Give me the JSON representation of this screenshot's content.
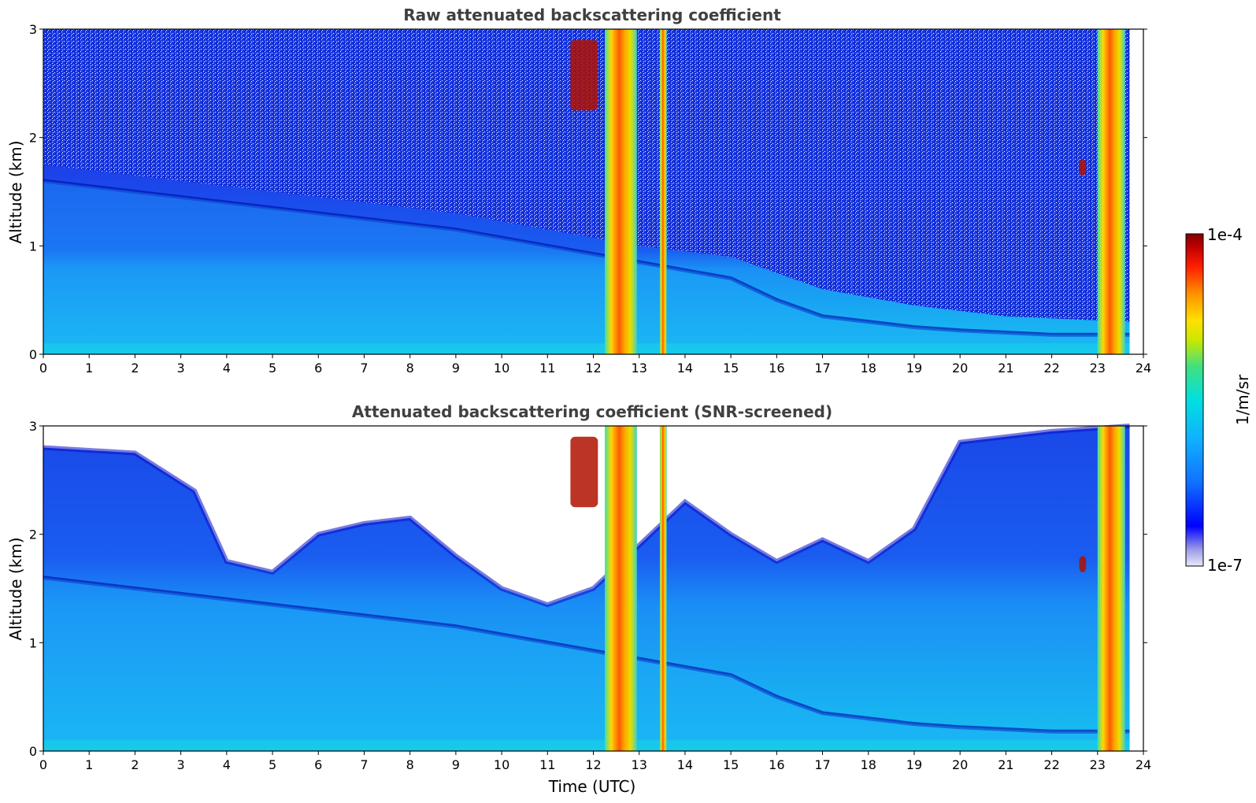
{
  "figure": {
    "xlabel": "Time (UTC)",
    "colorbar": {
      "label": "1/m/sr",
      "max_label": "1e-4",
      "min_label": "1e-7",
      "scale": "log",
      "colormap": [
        "#e8e8f8",
        "#9a9ae8",
        "#0000ff",
        "#1070ff",
        "#10b0ff",
        "#00e0e0",
        "#40e080",
        "#c8e800",
        "#ffe000",
        "#ff9000",
        "#ff2000",
        "#c00000",
        "#800000"
      ]
    }
  },
  "chart_data": [
    {
      "type": "heatmap",
      "title": "Raw attenuated backscattering coefficient",
      "xlabel": "",
      "ylabel": "Altitude (km)",
      "xlim": [
        0,
        24
      ],
      "ylim": [
        0,
        3
      ],
      "x_ticks": [
        "0",
        "1",
        "2",
        "3",
        "4",
        "5",
        "6",
        "7",
        "8",
        "9",
        "10",
        "11",
        "12",
        "13",
        "14",
        "15",
        "16",
        "17",
        "18",
        "19",
        "20",
        "21",
        "22",
        "23",
        "24"
      ],
      "y_ticks": [
        "0",
        "1",
        "2",
        "3"
      ],
      "grid": false,
      "data_end_time": 23.7,
      "boundary_layer_top_km": [
        [
          0,
          1.6
        ],
        [
          3,
          1.45
        ],
        [
          6,
          1.3
        ],
        [
          9,
          1.15
        ],
        [
          11,
          1.0
        ],
        [
          13,
          0.85
        ],
        [
          15,
          0.7
        ],
        [
          16,
          0.5
        ],
        [
          17,
          0.35
        ],
        [
          19,
          0.25
        ],
        [
          20,
          0.22
        ],
        [
          22,
          0.18
        ],
        [
          23.7,
          0.18
        ]
      ],
      "rain_columns_utc": [
        [
          12.25,
          12.95
        ],
        [
          13.45,
          13.6
        ],
        [
          23.0,
          23.6
        ]
      ],
      "cloud_features": [
        {
          "time": [
            11.5,
            12.1
          ],
          "altitude_km": [
            2.25,
            2.9
          ]
        },
        {
          "time": [
            22.6,
            22.75
          ],
          "altitude_km": [
            1.65,
            1.8
          ]
        }
      ]
    },
    {
      "type": "heatmap",
      "title": "Attenuated backscattering coefficient (SNR-screened)",
      "xlabel": "Time (UTC)",
      "ylabel": "Altitude (km)",
      "xlim": [
        0,
        24
      ],
      "ylim": [
        0,
        3
      ],
      "x_ticks": [
        "0",
        "1",
        "2",
        "3",
        "4",
        "5",
        "6",
        "7",
        "8",
        "9",
        "10",
        "11",
        "12",
        "13",
        "14",
        "15",
        "16",
        "17",
        "18",
        "19",
        "20",
        "21",
        "22",
        "23",
        "24"
      ],
      "y_ticks": [
        "0",
        "1",
        "2",
        "3"
      ],
      "grid": false,
      "data_end_time": 23.7,
      "screened_top_km": [
        [
          0,
          2.8
        ],
        [
          2,
          2.75
        ],
        [
          3.3,
          2.4
        ],
        [
          4,
          1.75
        ],
        [
          5,
          1.65
        ],
        [
          6,
          2.0
        ],
        [
          7,
          2.1
        ],
        [
          8,
          2.15
        ],
        [
          9,
          1.8
        ],
        [
          10,
          1.5
        ],
        [
          11,
          1.35
        ],
        [
          12,
          1.5
        ],
        [
          13.5,
          2.1
        ],
        [
          14,
          2.3
        ],
        [
          15,
          2.0
        ],
        [
          16,
          1.75
        ],
        [
          17,
          1.95
        ],
        [
          18,
          1.75
        ],
        [
          19,
          2.05
        ],
        [
          20,
          2.85
        ],
        [
          21,
          2.9
        ],
        [
          22,
          2.95
        ],
        [
          23.7,
          3.0
        ]
      ],
      "boundary_layer_top_km": [
        [
          0,
          1.6
        ],
        [
          3,
          1.45
        ],
        [
          6,
          1.3
        ],
        [
          9,
          1.15
        ],
        [
          11,
          1.0
        ],
        [
          13,
          0.85
        ],
        [
          15,
          0.7
        ],
        [
          16,
          0.5
        ],
        [
          17,
          0.35
        ],
        [
          19,
          0.25
        ],
        [
          20,
          0.22
        ],
        [
          22,
          0.18
        ],
        [
          23.7,
          0.18
        ]
      ],
      "rain_columns_utc": [
        [
          12.25,
          12.95
        ],
        [
          13.45,
          13.6
        ],
        [
          23.0,
          23.6
        ]
      ],
      "cloud_features": [
        {
          "time": [
            11.5,
            12.1
          ],
          "altitude_km": [
            2.25,
            2.9
          ]
        },
        {
          "time": [
            22.6,
            22.75
          ],
          "altitude_km": [
            1.65,
            1.8
          ]
        }
      ]
    }
  ]
}
